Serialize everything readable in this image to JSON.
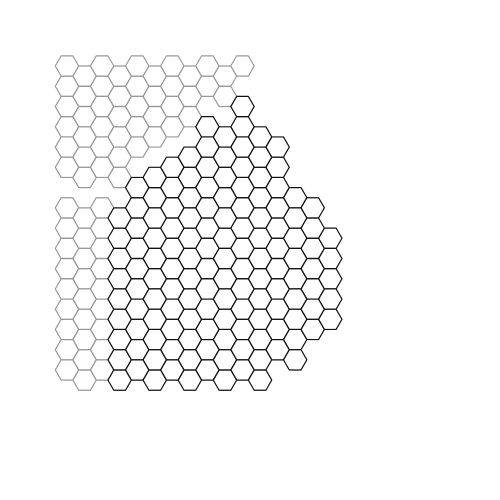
{
  "colors": {
    "background": "#ffffff",
    "faint_line": "#999999",
    "dark_line": "#111111"
  },
  "regions": {
    "gray": [
      {
        "col": 0,
        "rows": [
          0,
          1,
          2,
          3,
          4,
          5
        ]
      },
      {
        "col": 1,
        "rows": [
          0,
          1,
          2,
          3,
          4,
          5
        ]
      },
      {
        "col": 2,
        "rows": [
          0,
          1,
          2,
          3,
          4,
          5
        ]
      },
      {
        "col": 3,
        "rows": [
          0,
          1,
          2,
          3,
          4,
          5
        ]
      },
      {
        "col": 4,
        "rows": [
          0,
          1,
          2,
          3,
          4
        ]
      },
      {
        "col": 5,
        "rows": [
          0,
          1,
          2,
          3
        ]
      },
      {
        "col": 6,
        "rows": [
          0,
          1,
          2,
          3
        ]
      },
      {
        "col": 7,
        "rows": [
          0,
          1,
          2
        ]
      },
      {
        "col": 8,
        "rows": [
          0,
          1
        ]
      },
      {
        "col": 9,
        "rows": [
          0,
          1
        ]
      },
      {
        "col": 10,
        "rows": [
          0
        ]
      },
      {
        "col": 0,
        "rows": [
          7,
          8,
          9,
          10,
          11,
          12,
          13,
          14,
          15
        ]
      },
      {
        "col": 1,
        "rows": [
          7,
          8,
          9,
          10,
          11,
          12,
          13,
          14,
          15
        ]
      },
      {
        "col": 2,
        "rows": [
          7,
          8,
          9,
          10,
          11,
          12,
          13,
          14,
          15
        ]
      }
    ],
    "black": [
      {
        "col": 3,
        "rows": [
          7,
          8,
          9,
          10,
          11,
          12,
          13,
          14,
          15
        ]
      },
      {
        "col": 4,
        "rows": [
          6,
          7,
          8,
          9,
          10,
          11,
          12,
          13,
          14,
          15
        ]
      },
      {
        "col": 5,
        "rows": [
          5,
          6,
          7,
          8,
          9,
          10,
          11,
          12,
          13,
          14,
          15
        ]
      },
      {
        "col": 6,
        "rows": [
          5,
          6,
          7,
          8,
          9,
          10,
          11,
          12,
          13,
          14,
          15
        ]
      },
      {
        "col": 7,
        "rows": [
          4,
          5,
          6,
          7,
          8,
          9,
          10,
          11,
          12,
          13,
          14,
          15
        ]
      },
      {
        "col": 8,
        "rows": [
          3,
          4,
          5,
          6,
          7,
          8,
          9,
          10,
          11,
          12,
          13,
          14,
          15
        ]
      },
      {
        "col": 9,
        "rows": [
          3,
          4,
          5,
          6,
          7,
          8,
          9,
          10,
          11,
          12,
          13,
          14,
          15
        ]
      },
      {
        "col": 10,
        "rows": [
          2,
          3,
          4,
          5,
          6,
          7,
          8,
          9,
          10,
          11,
          12,
          13,
          14,
          15
        ]
      },
      {
        "col": 11,
        "rows": [
          3,
          4,
          5,
          6,
          7,
          8,
          9,
          10,
          11,
          12,
          13,
          14,
          15
        ]
      },
      {
        "col": 12,
        "rows": [
          4,
          5,
          6,
          7,
          8,
          9,
          10,
          11,
          12,
          13,
          14
        ]
      },
      {
        "col": 13,
        "rows": [
          6,
          7,
          8,
          9,
          10,
          11,
          12,
          13,
          14
        ]
      },
      {
        "col": 14,
        "rows": [
          7,
          8,
          9,
          10,
          11,
          12,
          13
        ]
      },
      {
        "col": 15,
        "rows": [
          8,
          9,
          10,
          11,
          12
        ]
      }
    ]
  }
}
